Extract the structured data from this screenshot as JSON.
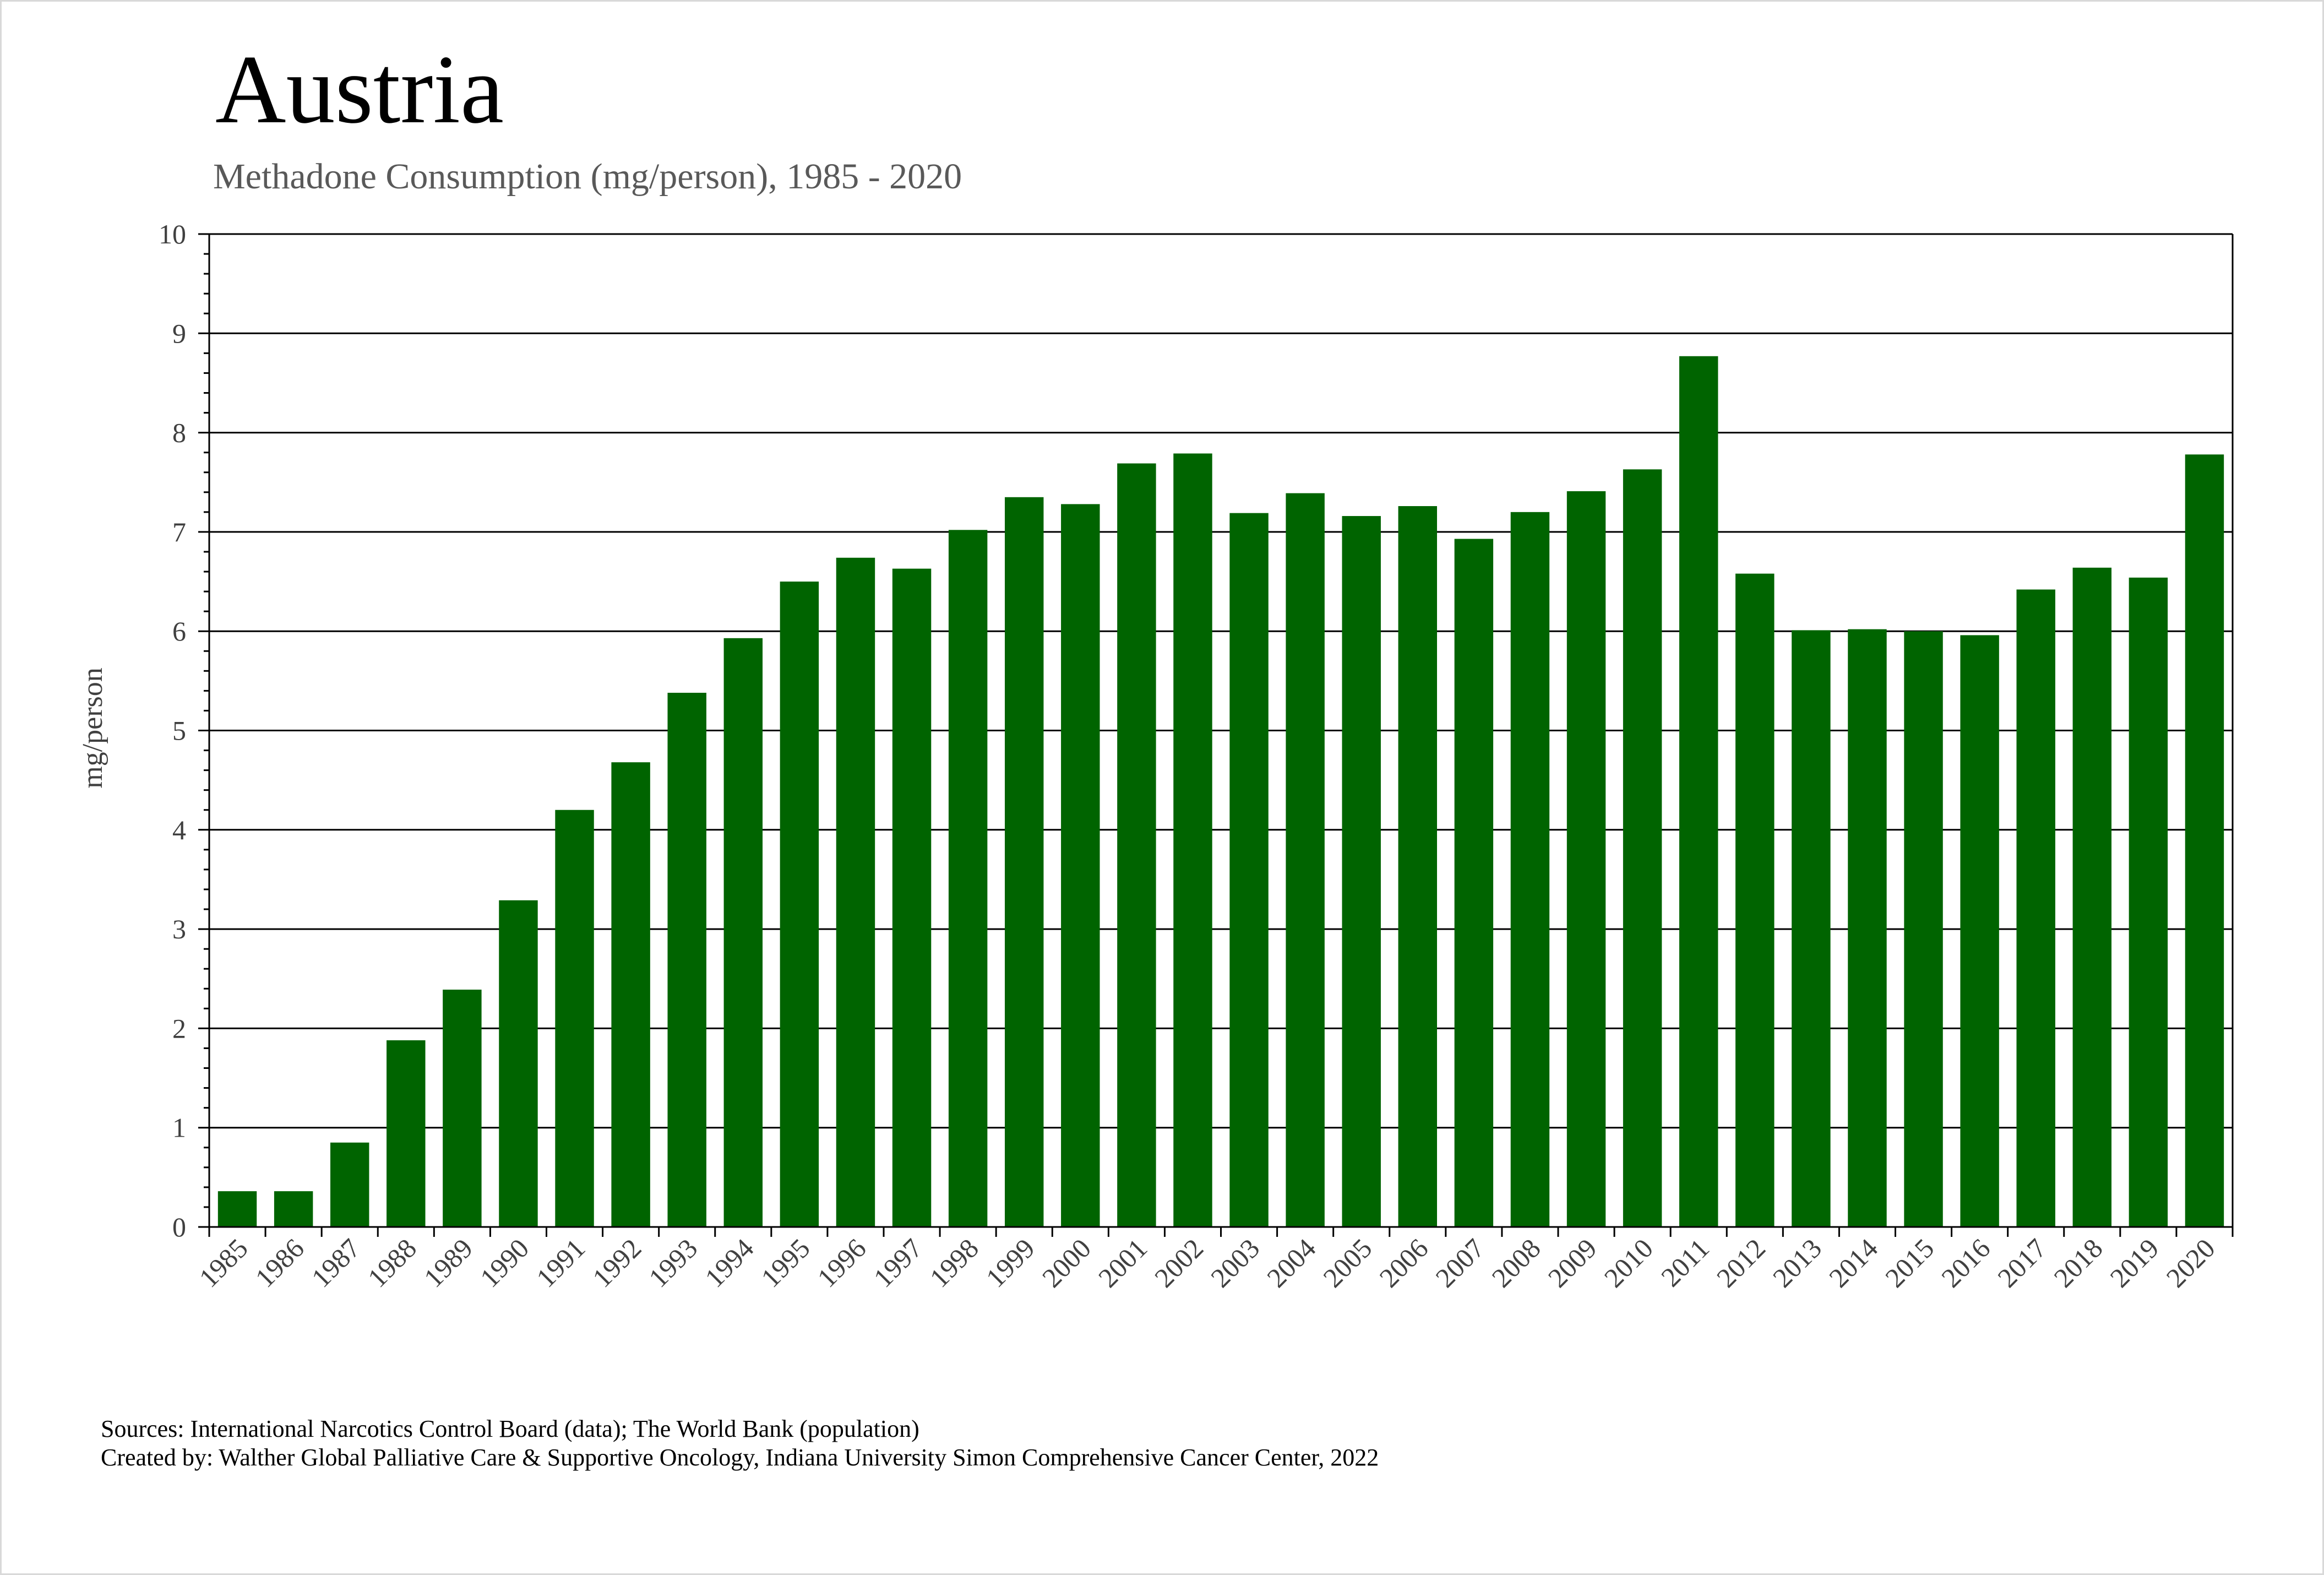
{
  "chart_data": {
    "type": "bar",
    "title": "Austria",
    "subtitle": "Methadone Consumption (mg/person), 1985 - 2020",
    "xlabel": "",
    "ylabel": "mg/person",
    "ylim": [
      0,
      10
    ],
    "yticks": [
      0,
      1,
      2,
      3,
      4,
      5,
      6,
      7,
      8,
      9,
      10
    ],
    "grid": true,
    "bar_color": "#006400",
    "categories": [
      "1985",
      "1986",
      "1987",
      "1988",
      "1989",
      "1990",
      "1991",
      "1992",
      "1993",
      "1994",
      "1995",
      "1996",
      "1997",
      "1998",
      "1999",
      "2000",
      "2001",
      "2002",
      "2003",
      "2004",
      "2005",
      "2006",
      "2007",
      "2008",
      "2009",
      "2010",
      "2011",
      "2012",
      "2013",
      "2014",
      "2015",
      "2016",
      "2017",
      "2018",
      "2019",
      "2020"
    ],
    "values": [
      0.36,
      0.36,
      0.85,
      1.88,
      2.39,
      3.29,
      4.2,
      4.68,
      5.38,
      5.93,
      6.5,
      6.74,
      6.63,
      7.02,
      7.35,
      7.28,
      7.69,
      7.79,
      7.19,
      7.39,
      7.16,
      7.26,
      6.93,
      7.2,
      7.41,
      7.63,
      8.77,
      6.58,
      6.01,
      6.02,
      6.0,
      5.96,
      6.42,
      6.64,
      6.54,
      7.78
    ]
  },
  "footer": {
    "sources": "Sources: International Narcotics Control Board (data); The World Bank (population)",
    "created_by": "Created by: Walther Global Palliative Care & Supportive Oncology, Indiana University Simon Comprehensive Cancer Center, 2022"
  }
}
